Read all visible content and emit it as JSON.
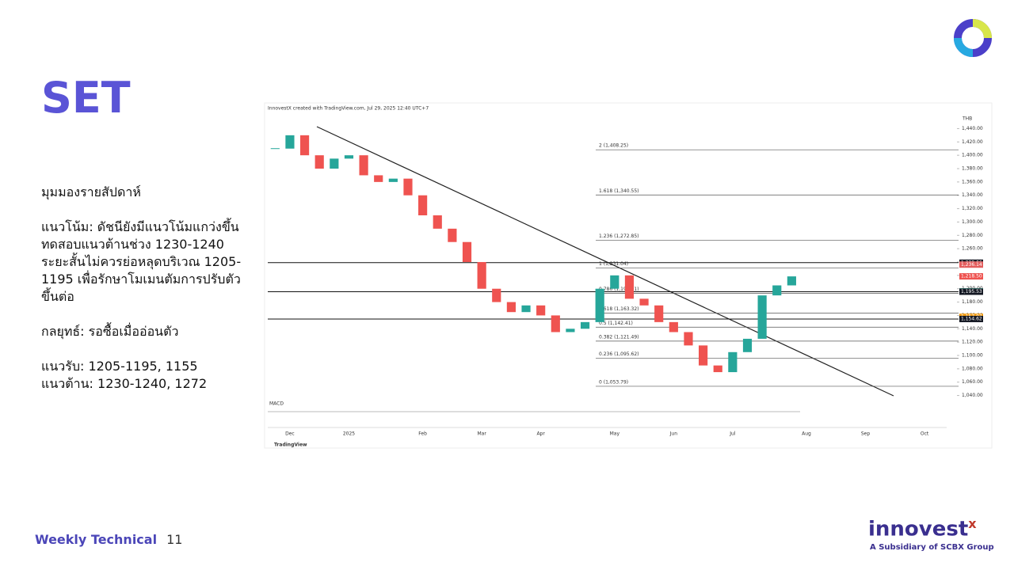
{
  "header": {
    "title": "SET"
  },
  "body": {
    "blocks": [
      [
        "มุมมองรายสัปดาห์"
      ],
      [
        "แนวโน้ม: ดัชนียังมีแนวโน้มแกว่งขึ้นทดสอบแนวต้านช่วง 1230-1240 ระยะสั้นไม่ควรย่อหลุดบริเวณ 1205-1195 เพื่อรักษาโมเมนตัมการปรับตัวขึ้นต่อ"
      ],
      [
        "กลยุทธ์: รอซื้อเมื่ออ่อนตัว"
      ],
      [
        "แนวรับ: 1205-1195, 1155",
        "แนวต้าน: 1230-1240, 1272"
      ]
    ]
  },
  "footer": {
    "label": "Weekly Technical",
    "page": "11",
    "brand": "innovest",
    "brand_mark": "x",
    "tagline": "A Subsidiary of SCBX Group"
  },
  "chart_data": {
    "type": "candlestick",
    "caption": "InnovestX created with TradingView.com, Jul 29, 2025 12:40 UTC+7",
    "currency": "THB",
    "pane_label": "MACD",
    "source": "TradingView",
    "categories": [
      null,
      "Dec",
      null,
      null,
      null,
      "2025",
      null,
      null,
      null,
      null,
      "Feb",
      null,
      null,
      null,
      "Mar",
      null,
      null,
      null,
      "Apr",
      null,
      null,
      null,
      null,
      "May",
      null,
      null,
      null,
      "Jun",
      null,
      null,
      null,
      "Jul",
      null,
      null,
      null,
      null,
      "Aug",
      null,
      null,
      null,
      "Sep",
      null,
      null,
      null,
      "Oct",
      null
    ],
    "values": [
      1410,
      1430,
      1400,
      1380,
      1395,
      1400,
      1370,
      1360,
      1365,
      1340,
      1310,
      1290,
      1270,
      1240,
      1200,
      1180,
      1165,
      1175,
      1160,
      1135,
      1140,
      1150,
      1200,
      1220,
      1185,
      1175,
      1150,
      1135,
      1115,
      1085,
      1075,
      1105,
      1125,
      1190,
      1205,
      1218.5,
      null,
      null,
      null,
      null,
      null,
      null,
      null,
      null,
      null,
      null
    ],
    "up_color": "#26a69a",
    "down_color": "#ef5350",
    "ylim": [
      1030,
      1450
    ],
    "yticks": [
      {
        "value": 1040,
        "label": "1,040.00"
      },
      {
        "value": 1060,
        "label": "1,060.00"
      },
      {
        "value": 1080,
        "label": "1,080.00"
      },
      {
        "value": 1100,
        "label": "1,100.00"
      },
      {
        "value": 1120,
        "label": "1,120.00"
      },
      {
        "value": 1140,
        "label": "1,140.00"
      },
      {
        "value": 1160,
        "label": "1,160.00"
      },
      {
        "value": 1180,
        "label": "1,180.00"
      },
      {
        "value": 1200,
        "label": "1,200.00"
      },
      {
        "value": 1220,
        "label": "1,220.00"
      },
      {
        "value": 1240,
        "label": "1,240.00"
      },
      {
        "value": 1260,
        "label": "1,260.00"
      },
      {
        "value": 1280,
        "label": "1,280.00"
      },
      {
        "value": 1300,
        "label": "1,300.00"
      },
      {
        "value": 1320,
        "label": "1,320.00"
      },
      {
        "value": 1340,
        "label": "1,340.00"
      },
      {
        "value": 1360,
        "label": "1,360.00"
      },
      {
        "value": 1380,
        "label": "1,380.00"
      },
      {
        "value": 1400,
        "label": "1,400.00"
      },
      {
        "value": 1420,
        "label": "1,420.00"
      },
      {
        "value": 1440,
        "label": "1,440.00"
      }
    ],
    "fib_levels": [
      {
        "value": 1408.25,
        "label": "2 (1,408.25)"
      },
      {
        "value": 1340.55,
        "label": "1.618 (1,340.55)"
      },
      {
        "value": 1272.85,
        "label": "1.236 (1,272.85)"
      },
      {
        "value": 1231.04,
        "label": "1 (1,231.04)"
      },
      {
        "value": 1193.11,
        "label": "0.786 (1,193.11)"
      },
      {
        "value": 1163.32,
        "label": "0.618 (1,163.32)"
      },
      {
        "value": 1142.41,
        "label": "0.5 (1,142.41)"
      },
      {
        "value": 1121.49,
        "label": "0.382 (1,121.49)"
      },
      {
        "value": 1095.62,
        "label": "0.236 (1,095.62)"
      },
      {
        "value": 1053.79,
        "label": "0 (1,053.79)"
      }
    ],
    "price_labels": [
      {
        "value": 1239.06,
        "label": "1,239.06",
        "color": "#131722",
        "hline": true
      },
      {
        "value": 1236.14,
        "label": "1,236.14",
        "color": "#e35d5d",
        "hline": false
      },
      {
        "value": 1218.5,
        "label": "1,218.50",
        "color": "#ef5350",
        "hline": false
      },
      {
        "value": 1195.93,
        "label": "1,195.93",
        "color": "#1b9e84",
        "hline": false
      },
      {
        "value": 1195.53,
        "label": "1,195.53",
        "color": "#131722",
        "hline": true
      },
      {
        "value": 1157.97,
        "label": "1,157.97",
        "color": "#f39c12",
        "hline": false
      },
      {
        "value": 1154.62,
        "label": "1,154.62",
        "color": "#131722",
        "hline": true
      }
    ]
  }
}
